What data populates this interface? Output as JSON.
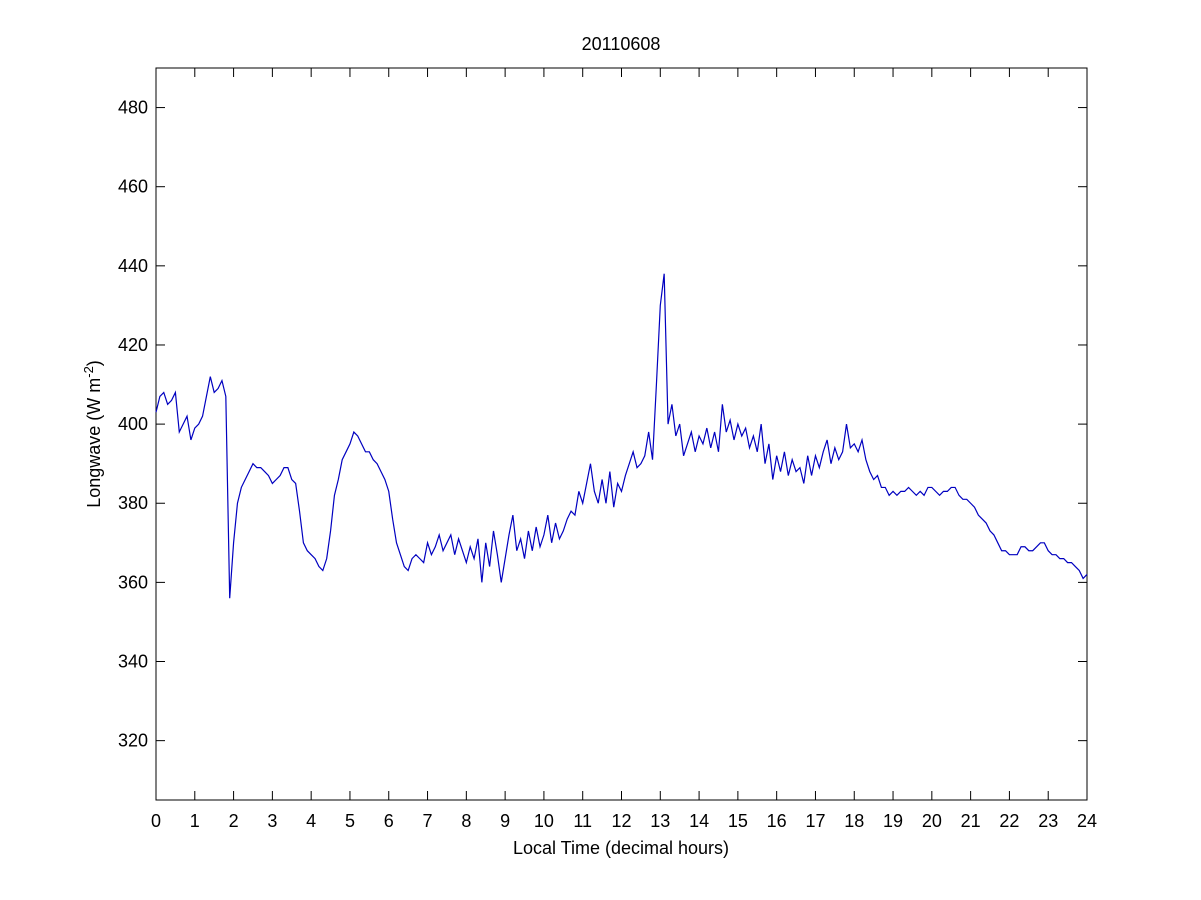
{
  "chart_data": {
    "type": "line",
    "title": "20110608",
    "xlabel": "Local Time (decimal hours)",
    "ylabel": {
      "text": "Longwave (W m",
      "superscript": "-2",
      "suffix": ")"
    },
    "xlim": [
      0,
      24
    ],
    "xticks": [
      0,
      1,
      2,
      3,
      4,
      5,
      6,
      7,
      8,
      9,
      10,
      11,
      12,
      13,
      14,
      15,
      16,
      17,
      18,
      19,
      20,
      21,
      22,
      23,
      24
    ],
    "ylim": [
      305,
      490
    ],
    "yticks": [
      320,
      340,
      360,
      380,
      400,
      420,
      440,
      460,
      480
    ],
    "grid": false,
    "x": [
      0,
      0.1,
      0.2,
      0.3,
      0.4,
      0.5,
      0.6,
      0.7,
      0.8,
      0.9,
      1,
      1.1,
      1.2,
      1.3,
      1.4,
      1.5,
      1.6,
      1.7,
      1.8,
      1.9,
      2,
      2.1,
      2.2,
      2.3,
      2.4,
      2.5,
      2.6,
      2.7,
      2.8,
      2.9,
      3,
      3.1,
      3.2,
      3.3,
      3.4,
      3.5,
      3.6,
      3.7,
      3.8,
      3.9,
      4,
      4.1,
      4.2,
      4.3,
      4.4,
      4.5,
      4.6,
      4.7,
      4.8,
      4.9,
      5,
      5.1,
      5.2,
      5.3,
      5.4,
      5.5,
      5.6,
      5.7,
      5.8,
      5.9,
      6,
      6.1,
      6.2,
      6.3,
      6.4,
      6.5,
      6.6,
      6.7,
      6.8,
      6.9,
      7,
      7.1,
      7.2,
      7.3,
      7.4,
      7.5,
      7.6,
      7.7,
      7.8,
      7.9,
      8,
      8.1,
      8.2,
      8.3,
      8.4,
      8.5,
      8.6,
      8.7,
      8.8,
      8.9,
      9,
      9.1,
      9.2,
      9.3,
      9.4,
      9.5,
      9.6,
      9.7,
      9.8,
      9.9,
      10,
      10.1,
      10.2,
      10.3,
      10.4,
      10.5,
      10.6,
      10.7,
      10.8,
      10.9,
      11,
      11.1,
      11.2,
      11.3,
      11.4,
      11.5,
      11.6,
      11.7,
      11.8,
      11.9,
      12,
      12.1,
      12.2,
      12.3,
      12.4,
      12.5,
      12.6,
      12.7,
      12.8,
      12.9,
      13,
      13.1,
      13.2,
      13.3,
      13.4,
      13.5,
      13.6,
      13.7,
      13.8,
      13.9,
      14,
      14.1,
      14.2,
      14.3,
      14.4,
      14.5,
      14.6,
      14.7,
      14.8,
      14.9,
      15,
      15.1,
      15.2,
      15.3,
      15.4,
      15.5,
      15.6,
      15.7,
      15.8,
      15.9,
      16,
      16.1,
      16.2,
      16.3,
      16.4,
      16.5,
      16.6,
      16.7,
      16.8,
      16.9,
      17,
      17.1,
      17.2,
      17.3,
      17.4,
      17.5,
      17.6,
      17.7,
      17.8,
      17.9,
      18,
      18.1,
      18.2,
      18.3,
      18.4,
      18.5,
      18.6,
      18.7,
      18.8,
      18.9,
      19,
      19.1,
      19.2,
      19.3,
      19.4,
      19.5,
      19.6,
      19.7,
      19.8,
      19.9,
      20,
      20.1,
      20.2,
      20.3,
      20.4,
      20.5,
      20.6,
      20.7,
      20.8,
      20.9,
      21,
      21.1,
      21.2,
      21.3,
      21.4,
      21.5,
      21.6,
      21.7,
      21.8,
      21.9,
      22,
      22.1,
      22.2,
      22.3,
      22.4,
      22.5,
      22.6,
      22.7,
      22.8,
      22.9,
      23,
      23.1,
      23.2,
      23.3,
      23.4,
      23.5,
      23.6,
      23.7,
      23.8,
      23.9,
      24
    ],
    "series": [
      {
        "color": "#0000c0",
        "values": [
          403,
          407,
          408,
          405,
          406,
          408,
          398,
          400,
          402,
          396,
          399,
          400,
          402,
          407,
          412,
          408,
          409,
          411,
          407,
          356,
          370,
          380,
          384,
          386,
          388,
          390,
          389,
          389,
          388,
          387,
          385,
          386,
          387,
          389,
          389,
          386,
          385,
          378,
          370,
          368,
          367,
          366,
          364,
          363,
          366,
          373,
          382,
          386,
          391,
          393,
          395,
          398,
          397,
          395,
          393,
          393,
          391,
          390,
          388,
          386,
          383,
          376,
          370,
          367,
          364,
          363,
          366,
          367,
          366,
          365,
          370,
          367,
          369,
          372,
          368,
          370,
          372,
          367,
          371,
          368,
          365,
          369,
          366,
          371,
          360,
          370,
          364,
          373,
          367,
          360,
          366,
          372,
          377,
          368,
          371,
          366,
          373,
          368,
          374,
          369,
          372,
          377,
          370,
          375,
          371,
          373,
          376,
          378,
          377,
          383,
          380,
          385,
          390,
          383,
          380,
          386,
          380,
          388,
          379,
          385,
          383,
          387,
          390,
          393,
          389,
          390,
          392,
          398,
          391,
          410,
          430,
          438,
          400,
          405,
          397,
          400,
          392,
          395,
          398,
          393,
          397,
          395,
          399,
          394,
          398,
          393,
          405,
          398,
          401,
          396,
          400,
          397,
          399,
          394,
          397,
          393,
          400,
          390,
          395,
          386,
          392,
          388,
          393,
          387,
          391,
          388,
          389,
          385,
          392,
          387,
          392,
          389,
          393,
          396,
          390,
          394,
          391,
          393,
          400,
          394,
          395,
          393,
          396,
          391,
          388,
          386,
          387,
          384,
          384,
          382,
          383,
          382,
          383,
          383,
          384,
          383,
          382,
          383,
          382,
          384,
          384,
          383,
          382,
          383,
          383,
          384,
          384,
          382,
          381,
          381,
          380,
          379,
          377,
          376,
          375,
          373,
          372,
          370,
          368,
          368,
          367,
          367,
          367,
          369,
          369,
          368,
          368,
          369,
          370,
          370,
          368,
          367,
          367,
          366,
          366,
          365,
          365,
          364,
          363,
          361,
          362
        ]
      }
    ]
  }
}
